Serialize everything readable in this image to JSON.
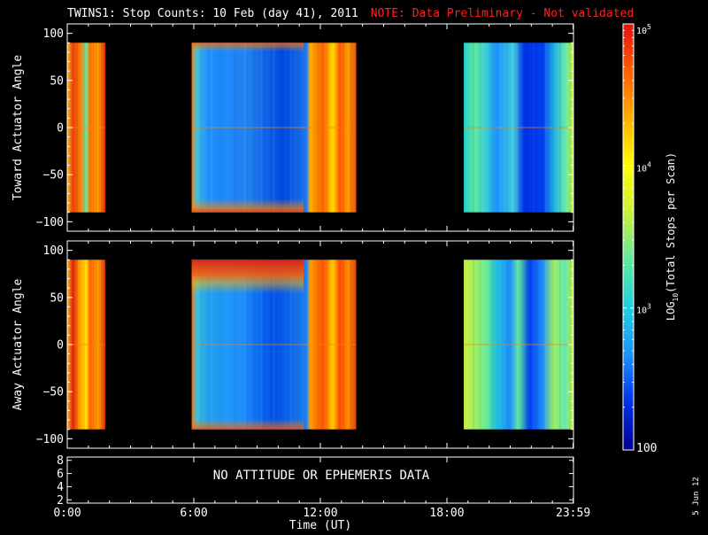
{
  "title": {
    "main": "TWINS1: Stop Counts: 10 Feb (day  41), 2011",
    "note": "NOTE: Data Preliminary - Not validated"
  },
  "colors": {
    "note": "#ff2020",
    "background": "#000000",
    "axes": "#ffffff",
    "colormap": [
      "#000090",
      "#0030e8",
      "#1e90ff",
      "#20d0e0",
      "#60e8a0",
      "#c8f040",
      "#ffff00",
      "#ffb000",
      "#ff6000",
      "#e81010"
    ]
  },
  "chart_data": [
    {
      "type": "heatmap",
      "panel": "top",
      "ylabel": "Toward Actuator Angle",
      "ylim": [
        -110,
        110
      ],
      "yticks": [
        100,
        50,
        0,
        -50,
        -100
      ],
      "ytick_labels": [
        "100",
        "50",
        "0",
        "−50",
        "−100"
      ],
      "data_y_range": [
        -90,
        90
      ],
      "xlim": [
        0,
        24
      ],
      "segments": [
        {
          "start_hr": 0.0,
          "end_hr": 1.8,
          "level": "high (orange-red)",
          "log10_counts": 4.6
        },
        {
          "start_hr": 5.9,
          "end_hr": 13.7,
          "level": "low centre (blue), high edges (orange)",
          "log10_counts": 3.2
        },
        {
          "start_hr": 18.8,
          "end_hr": 24.0,
          "level": "low-medium (cyan-blue)",
          "log10_counts": 3.0
        }
      ]
    },
    {
      "type": "heatmap",
      "panel": "middle",
      "ylabel": "Away Actuator Angle",
      "ylim": [
        -110,
        110
      ],
      "yticks": [
        100,
        50,
        0,
        -50,
        -100
      ],
      "ytick_labels": [
        "100",
        "50",
        "0",
        "−50",
        "−100"
      ],
      "data_y_range": [
        -90,
        90
      ],
      "xlim": [
        0,
        24
      ],
      "segments": [
        {
          "start_hr": 0.0,
          "end_hr": 1.8,
          "level": "high (orange-red)",
          "log10_counts": 4.6
        },
        {
          "start_hr": 5.9,
          "end_hr": 13.7,
          "level": "low centre (blue), high edges and top (orange-red)",
          "log10_counts": 3.3
        },
        {
          "start_hr": 18.8,
          "end_hr": 24.0,
          "level": "medium (green-yellow), blue in middle",
          "log10_counts": 3.4
        }
      ]
    },
    {
      "type": "table",
      "panel": "ephemeris",
      "message": "NO ATTITUDE OR EPHEMERIS DATA",
      "ylim": [
        1.5,
        8.5
      ],
      "yticks": [
        8,
        6,
        4,
        2
      ],
      "ytick_labels": [
        "8",
        "6",
        "4",
        "2"
      ]
    }
  ],
  "x_axis": {
    "label": "Time (UT)",
    "ticks_hr": [
      0,
      6,
      12,
      18,
      23.983
    ],
    "tick_labels": [
      "0:00",
      "6:00",
      "12:00",
      "18:00",
      "23:59"
    ]
  },
  "colorbar": {
    "label": "LOG10(Total Stops per Scan)",
    "label_base": "LOG",
    "label_sub": "10",
    "label_rest": "(Total Stops per Scan)",
    "range_log": [
      2,
      5
    ],
    "scale": "log",
    "ticks": [
      {
        "log": 5,
        "base": "10",
        "exp": "5"
      },
      {
        "log": 4,
        "base": "10",
        "exp": "4"
      },
      {
        "log": 3,
        "base": "10",
        "exp": "3"
      },
      {
        "log": 2,
        "text": "100"
      }
    ]
  },
  "date_stamp": "5 Jun 12"
}
